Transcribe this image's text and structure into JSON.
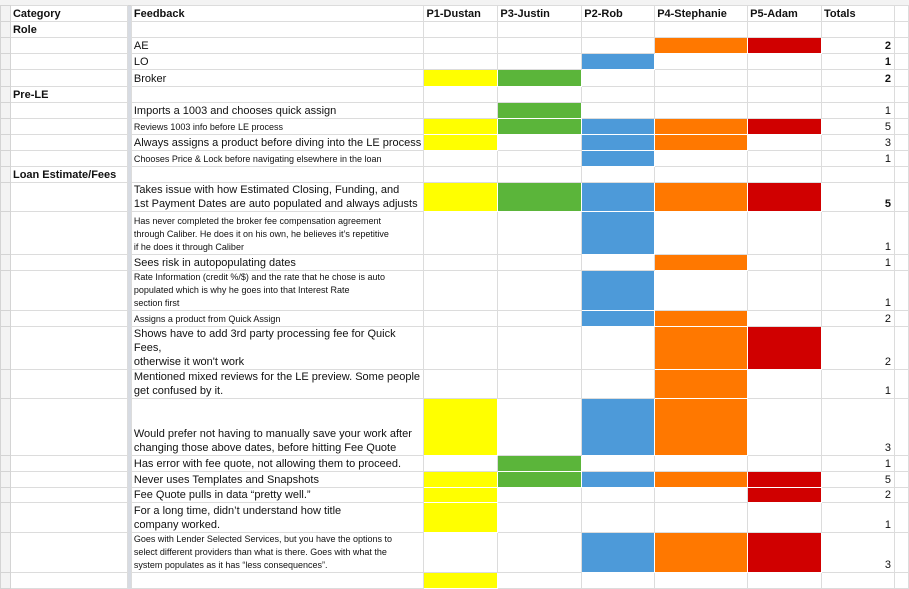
{
  "headers": {
    "category": "Category",
    "feedback": "Feedback",
    "participants": [
      "P1-Dustan",
      "P3-Justin",
      "P2-Rob",
      "P4-Stephanie",
      "P5-Adam"
    ],
    "totals": "Totals"
  },
  "participant_colors": [
    "#ffff00",
    "#5bb53a",
    "#4d9ad9",
    "#ff7800",
    "#d00000"
  ],
  "rows": [
    {
      "category": "Role",
      "feedback": "",
      "marks": [
        0,
        0,
        0,
        0,
        0
      ],
      "total": ""
    },
    {
      "category": "",
      "feedback": "AE",
      "marks": [
        0,
        0,
        0,
        1,
        1
      ],
      "total": "2"
    },
    {
      "category": "",
      "feedback": "LO",
      "marks": [
        0,
        0,
        1,
        0,
        0
      ],
      "total": "1"
    },
    {
      "category": "",
      "feedback": "Broker",
      "marks": [
        1,
        1,
        0,
        0,
        0
      ],
      "total": "2"
    },
    {
      "category": "Pre-LE",
      "feedback": "",
      "marks": [
        0,
        0,
        0,
        0,
        0
      ],
      "total": ""
    },
    {
      "category": "",
      "feedback": "Imports a 1003 and chooses quick assign",
      "marks": [
        0,
        1,
        0,
        0,
        0
      ],
      "total": "1"
    },
    {
      "category": "",
      "feedback": "Reviews 1003 info before LE process",
      "marks": [
        1,
        1,
        1,
        1,
        1
      ],
      "total": "5"
    },
    {
      "category": "",
      "feedback": "Always assigns a product before diving into the LE process",
      "marks": [
        1,
        0,
        1,
        1,
        0
      ],
      "total": "3"
    },
    {
      "category": "",
      "feedback": "Chooses Price & Lock before navigating elsewhere in the loan",
      "marks": [
        0,
        0,
        1,
        0,
        0
      ],
      "total": "1"
    },
    {
      "category": "Loan Estimate/Fees",
      "feedback": "",
      "marks": [
        0,
        0,
        0,
        0,
        0
      ],
      "total": ""
    },
    {
      "category": "",
      "feedback": "Takes issue with how Estimated Closing, Funding, and\n1st Payment Dates are auto populated and always adjusts",
      "marks": [
        1,
        1,
        1,
        1,
        1
      ],
      "total": "5"
    },
    {
      "category": "",
      "feedback": "Has never completed the broker fee compensation agreement\nthrough Caliber. He does it on his own, he believes it’s repetitive\nif he does it through Caliber",
      "marks": [
        0,
        0,
        1,
        0,
        0
      ],
      "total": "1"
    },
    {
      "category": "",
      "feedback": "Sees risk in autopopulating dates",
      "marks": [
        0,
        0,
        0,
        1,
        0
      ],
      "total": "1"
    },
    {
      "category": "",
      "feedback": "Rate Information (credit %/$) and the rate that he chose is auto\npopulated which is why he goes into that Interest Rate\nsection first",
      "marks": [
        0,
        0,
        1,
        0,
        0
      ],
      "total": "1"
    },
    {
      "category": "",
      "feedback": "Assigns a product from Quick Assign",
      "marks": [
        0,
        0,
        1,
        1,
        0
      ],
      "total": "2"
    },
    {
      "category": "",
      "feedback": "Shows have to add 3rd party processing fee for Quick Fees,\notherwise it won't work",
      "marks": [
        0,
        0,
        0,
        1,
        1
      ],
      "total": "2"
    },
    {
      "category": "",
      "feedback": "Mentioned mixed reviews for the LE preview. Some people\nget confused by it.",
      "marks": [
        0,
        0,
        0,
        1,
        0
      ],
      "total": "1"
    },
    {
      "category": "",
      "feedback": "Would prefer not having to manually save your work after\nchanging those above dates, before hitting Fee Quote",
      "marks": [
        1,
        0,
        1,
        1,
        0
      ],
      "total": "3"
    },
    {
      "category": "",
      "feedback": "Has error with fee quote, not allowing them to proceed.",
      "marks": [
        0,
        1,
        0,
        0,
        0
      ],
      "total": "1"
    },
    {
      "category": "",
      "feedback": "Never uses Templates and Snapshots",
      "marks": [
        1,
        1,
        1,
        1,
        1
      ],
      "total": "5"
    },
    {
      "category": "",
      "feedback": "Fee Quote pulls in data “pretty well.”",
      "marks": [
        1,
        0,
        0,
        0,
        1
      ],
      "total": "2"
    },
    {
      "category": "",
      "feedback": "For a long time, didn’t understand how title\ncompany worked.",
      "marks": [
        1,
        0,
        0,
        0,
        0
      ],
      "total": "1"
    },
    {
      "category": "",
      "feedback": "Goes with Lender Selected Services, but you have the options to\nselect different providers than what is there. Goes with what the\nsystem populates as it has “less consequences”.",
      "marks": [
        0,
        0,
        1,
        1,
        1
      ],
      "total": "3"
    },
    {
      "category": "",
      "feedback": "",
      "marks": [
        1,
        0,
        0,
        0,
        0
      ],
      "total": ""
    }
  ]
}
